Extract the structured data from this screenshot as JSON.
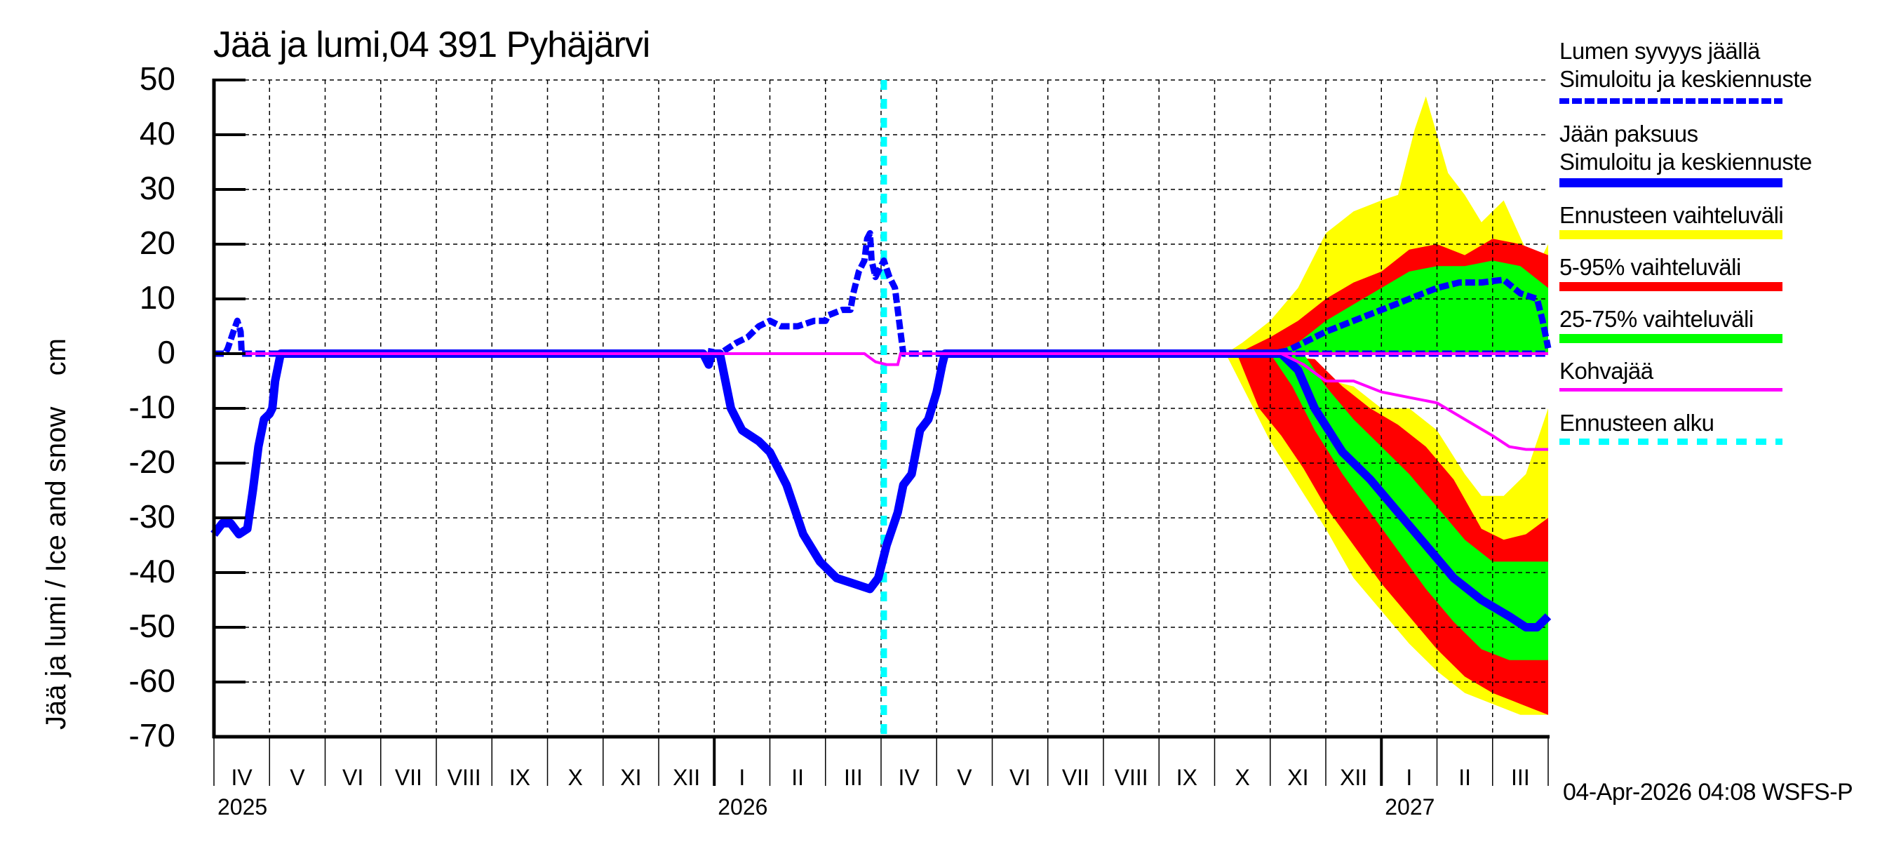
{
  "chart_data": {
    "type": "line",
    "title": "Jää ja lumi,04 391 Pyhäjärvi",
    "xlabel": "",
    "ylabel": "Jää ja lumi / Ice and snow    cm",
    "ylim": [
      -70,
      50
    ],
    "yticks": [
      50,
      40,
      30,
      20,
      10,
      0,
      -10,
      -20,
      -30,
      -40,
      -50,
      -60,
      -70
    ],
    "xlim_months": [
      0,
      24
    ],
    "x_unit": "months since 2025-04-01",
    "x_tick_labels": [
      "IV",
      "V",
      "VI",
      "VII",
      "VIII",
      "IX",
      "X",
      "XI",
      "XII",
      "I",
      "II",
      "III",
      "IV",
      "V",
      "VI",
      "VII",
      "VIII",
      "IX",
      "X",
      "XI",
      "XII",
      "I",
      "II",
      "III"
    ],
    "year_labels": [
      {
        "label": "2025",
        "month": 0
      },
      {
        "label": "2026",
        "month": 9
      },
      {
        "label": "2027",
        "month": 21
      }
    ],
    "grid": true,
    "forecast_start_month": 12.05,
    "legend_position": "right",
    "series": [
      {
        "name": "Lumen syvyys jäällä – Simuloitu ja keskiennuste",
        "style": "dashed",
        "color": "#0000ff",
        "points": [
          [
            0,
            0
          ],
          [
            0.2,
            0
          ],
          [
            0.25,
            1
          ],
          [
            0.35,
            4
          ],
          [
            0.42,
            6
          ],
          [
            0.48,
            4
          ],
          [
            0.5,
            0
          ],
          [
            0.6,
            0
          ],
          [
            8.8,
            0
          ],
          [
            8.9,
            -2
          ],
          [
            8.95,
            1
          ],
          [
            9.0,
            0
          ],
          [
            9.1,
            0
          ],
          [
            9.25,
            1
          ],
          [
            9.4,
            2
          ],
          [
            9.6,
            3
          ],
          [
            9.8,
            5
          ],
          [
            10.0,
            6
          ],
          [
            10.2,
            5
          ],
          [
            10.5,
            5
          ],
          [
            10.8,
            6
          ],
          [
            11.0,
            6
          ],
          [
            11.05,
            7
          ],
          [
            11.3,
            8
          ],
          [
            11.45,
            8
          ],
          [
            11.5,
            11
          ],
          [
            11.6,
            15
          ],
          [
            11.7,
            17
          ],
          [
            11.75,
            21
          ],
          [
            11.8,
            22
          ],
          [
            11.83,
            17
          ],
          [
            11.9,
            14
          ],
          [
            11.95,
            15
          ],
          [
            12.05,
            17
          ],
          [
            12.15,
            14
          ],
          [
            12.25,
            12
          ],
          [
            12.35,
            4
          ],
          [
            12.4,
            0
          ],
          [
            24,
            0
          ]
        ]
      },
      {
        "name": "Lumen syvyys jäällä – keskiennuste (forecast)",
        "style": "dashed",
        "color": "#0000ff",
        "points": [
          [
            18.2,
            0
          ],
          [
            19.0,
            0
          ],
          [
            19.3,
            0.5
          ],
          [
            19.6,
            2
          ],
          [
            20.0,
            4
          ],
          [
            20.5,
            6
          ],
          [
            21.0,
            8
          ],
          [
            21.5,
            10
          ],
          [
            22.0,
            12
          ],
          [
            22.4,
            13
          ],
          [
            22.8,
            13
          ],
          [
            23.2,
            13.5
          ],
          [
            23.5,
            11
          ],
          [
            23.8,
            10
          ],
          [
            23.9,
            6
          ],
          [
            24,
            1
          ]
        ]
      },
      {
        "name": "Jään paksuus – Simuloitu ja keskiennuste",
        "style": "solid",
        "color": "#0000ff",
        "points": [
          [
            0,
            -33
          ],
          [
            0.15,
            -31
          ],
          [
            0.3,
            -31
          ],
          [
            0.45,
            -33
          ],
          [
            0.6,
            -32
          ],
          [
            0.7,
            -25
          ],
          [
            0.8,
            -17
          ],
          [
            0.9,
            -12
          ],
          [
            1.0,
            -11
          ],
          [
            1.05,
            -10
          ],
          [
            1.1,
            -5
          ],
          [
            1.2,
            0
          ],
          [
            1.3,
            0
          ],
          [
            8.8,
            0
          ],
          [
            8.9,
            -2
          ],
          [
            8.95,
            0
          ],
          [
            9.1,
            0
          ],
          [
            9.2,
            -5
          ],
          [
            9.3,
            -10
          ],
          [
            9.5,
            -14
          ],
          [
            9.8,
            -16
          ],
          [
            10.0,
            -18
          ],
          [
            10.3,
            -24
          ],
          [
            10.6,
            -33
          ],
          [
            10.9,
            -38
          ],
          [
            11.2,
            -41
          ],
          [
            11.5,
            -42
          ],
          [
            11.8,
            -43
          ],
          [
            11.95,
            -41
          ],
          [
            12.1,
            -35
          ],
          [
            12.3,
            -29
          ],
          [
            12.4,
            -24
          ],
          [
            12.55,
            -22
          ],
          [
            12.7,
            -14
          ],
          [
            12.85,
            -12
          ],
          [
            13.0,
            -7
          ],
          [
            13.1,
            -2
          ],
          [
            13.15,
            0
          ],
          [
            18.0,
            0
          ],
          [
            19.2,
            0
          ],
          [
            19.5,
            -3
          ],
          [
            19.8,
            -10
          ],
          [
            20.3,
            -18
          ],
          [
            20.8,
            -23
          ],
          [
            21.3,
            -29
          ],
          [
            21.8,
            -35
          ],
          [
            22.3,
            -41
          ],
          [
            22.8,
            -45
          ],
          [
            23.3,
            -48
          ],
          [
            23.6,
            -50
          ],
          [
            23.8,
            -50
          ],
          [
            24,
            -48
          ]
        ]
      },
      {
        "name": "Kohvajää",
        "style": "solid",
        "color": "#ff00ff",
        "points": [
          [
            0,
            0
          ],
          [
            11.7,
            0
          ],
          [
            11.9,
            -1.5
          ],
          [
            12.1,
            -2
          ],
          [
            12.3,
            -2
          ],
          [
            12.35,
            0
          ],
          [
            24,
            0
          ]
        ],
        "forecast_points": [
          [
            19.2,
            0
          ],
          [
            19.6,
            -2
          ],
          [
            20.0,
            -5
          ],
          [
            20.5,
            -5
          ],
          [
            21.0,
            -7
          ],
          [
            21.5,
            -8
          ],
          [
            22.0,
            -9
          ],
          [
            22.5,
            -12
          ],
          [
            23.0,
            -15
          ],
          [
            23.3,
            -17
          ],
          [
            23.6,
            -17.5
          ],
          [
            24,
            -17.5
          ]
        ]
      },
      {
        "name": "Ennusteen vaihteluväli",
        "style": "band",
        "color": "#ffff00",
        "upper": [
          [
            18.2,
            0
          ],
          [
            18.5,
            2
          ],
          [
            19.0,
            6
          ],
          [
            19.5,
            12
          ],
          [
            20.0,
            22
          ],
          [
            20.5,
            26
          ],
          [
            21.0,
            28
          ],
          [
            21.3,
            29
          ],
          [
            21.6,
            41
          ],
          [
            21.8,
            47
          ],
          [
            22.0,
            40
          ],
          [
            22.2,
            33
          ],
          [
            22.5,
            29
          ],
          [
            22.8,
            24
          ],
          [
            23.2,
            28
          ],
          [
            23.6,
            19
          ],
          [
            23.9,
            18
          ],
          [
            24,
            20
          ]
        ],
        "lower": [
          [
            18.2,
            0
          ],
          [
            18.6,
            -8
          ],
          [
            19.0,
            -16
          ],
          [
            19.5,
            -24
          ],
          [
            20.0,
            -32
          ],
          [
            20.5,
            -41
          ],
          [
            21.0,
            -47
          ],
          [
            21.5,
            -53
          ],
          [
            22.0,
            -58
          ],
          [
            22.5,
            -62
          ],
          [
            23.0,
            -64
          ],
          [
            23.5,
            -66
          ],
          [
            24,
            -66
          ]
        ],
        "upper_neg": [
          [
            20.5,
            -6
          ],
          [
            21.0,
            -10
          ],
          [
            21.5,
            -10
          ],
          [
            22.0,
            -14
          ],
          [
            22.5,
            -22
          ],
          [
            22.8,
            -26
          ],
          [
            23.2,
            -26
          ],
          [
            23.6,
            -22
          ],
          [
            24,
            -10
          ]
        ]
      },
      {
        "name": "5-95% vaihteluväli",
        "style": "band",
        "color": "#ff0000",
        "upper": [
          [
            18.4,
            0
          ],
          [
            19.0,
            3
          ],
          [
            19.5,
            6
          ],
          [
            20.0,
            10
          ],
          [
            20.5,
            13
          ],
          [
            21.0,
            15
          ],
          [
            21.5,
            19
          ],
          [
            22.0,
            20
          ],
          [
            22.5,
            18
          ],
          [
            23.0,
            21
          ],
          [
            23.5,
            20
          ],
          [
            24,
            18
          ]
        ],
        "lower": [
          [
            18.4,
            0
          ],
          [
            18.8,
            -10
          ],
          [
            19.2,
            -15
          ],
          [
            19.6,
            -21
          ],
          [
            20.0,
            -28
          ],
          [
            20.5,
            -35
          ],
          [
            21.0,
            -42
          ],
          [
            21.5,
            -48
          ],
          [
            22.0,
            -54
          ],
          [
            22.5,
            -59
          ],
          [
            23.0,
            -62
          ],
          [
            23.5,
            -64
          ],
          [
            24,
            -66
          ]
        ],
        "upper_neg": [
          [
            19.8,
            -1
          ],
          [
            20.3,
            -6
          ],
          [
            20.8,
            -10
          ],
          [
            21.3,
            -13
          ],
          [
            21.8,
            -17
          ],
          [
            22.3,
            -23
          ],
          [
            22.8,
            -32
          ],
          [
            23.2,
            -34
          ],
          [
            23.6,
            -33
          ],
          [
            24,
            -30
          ]
        ]
      },
      {
        "name": "25-75% vaihteluväli",
        "style": "band",
        "color": "#00ff00",
        "upper": [
          [
            19.0,
            0
          ],
          [
            19.5,
            2
          ],
          [
            20.0,
            6
          ],
          [
            20.5,
            9
          ],
          [
            21.0,
            12
          ],
          [
            21.5,
            15
          ],
          [
            22.0,
            16
          ],
          [
            22.5,
            16
          ],
          [
            23.0,
            17
          ],
          [
            23.5,
            16
          ],
          [
            24,
            12
          ]
        ],
        "lower": [
          [
            19.0,
            0
          ],
          [
            19.4,
            -6
          ],
          [
            19.8,
            -14
          ],
          [
            20.3,
            -22
          ],
          [
            20.8,
            -29
          ],
          [
            21.3,
            -36
          ],
          [
            21.8,
            -43
          ],
          [
            22.3,
            -49
          ],
          [
            22.8,
            -54
          ],
          [
            23.3,
            -56
          ],
          [
            24,
            -56
          ]
        ],
        "upper_neg": [
          [
            19.6,
            0
          ],
          [
            20.0,
            -6
          ],
          [
            20.5,
            -12
          ],
          [
            21.0,
            -17
          ],
          [
            21.5,
            -22
          ],
          [
            22.0,
            -28
          ],
          [
            22.5,
            -34
          ],
          [
            23.0,
            -38
          ],
          [
            23.5,
            -38
          ],
          [
            24,
            -38
          ]
        ]
      }
    ]
  },
  "legend": {
    "items": [
      {
        "line1": "Lumen syvyys jäällä",
        "line2": "Simuloitu ja keskiennuste",
        "color": "#0000ff",
        "style": "dashed"
      },
      {
        "line1": "Jään paksuus",
        "line2": "Simuloitu ja keskiennuste",
        "color": "#0000ff",
        "style": "solid"
      },
      {
        "line1": "Ennusteen vaihteluväli",
        "color": "#ffff00",
        "style": "solid"
      },
      {
        "line1": "5-95% vaihteluväli",
        "color": "#ff0000",
        "style": "solid"
      },
      {
        "line1": "25-75% vaihteluväli",
        "color": "#00ff00",
        "style": "solid"
      },
      {
        "line1": "Kohvajää",
        "color": "#ff00ff",
        "style": "thin"
      },
      {
        "line1": "Ennusteen alku",
        "color": "#00ffff",
        "style": "dotted"
      }
    ]
  },
  "footer": {
    "timestamp": "04-Apr-2026 04:08 WSFS-P"
  }
}
